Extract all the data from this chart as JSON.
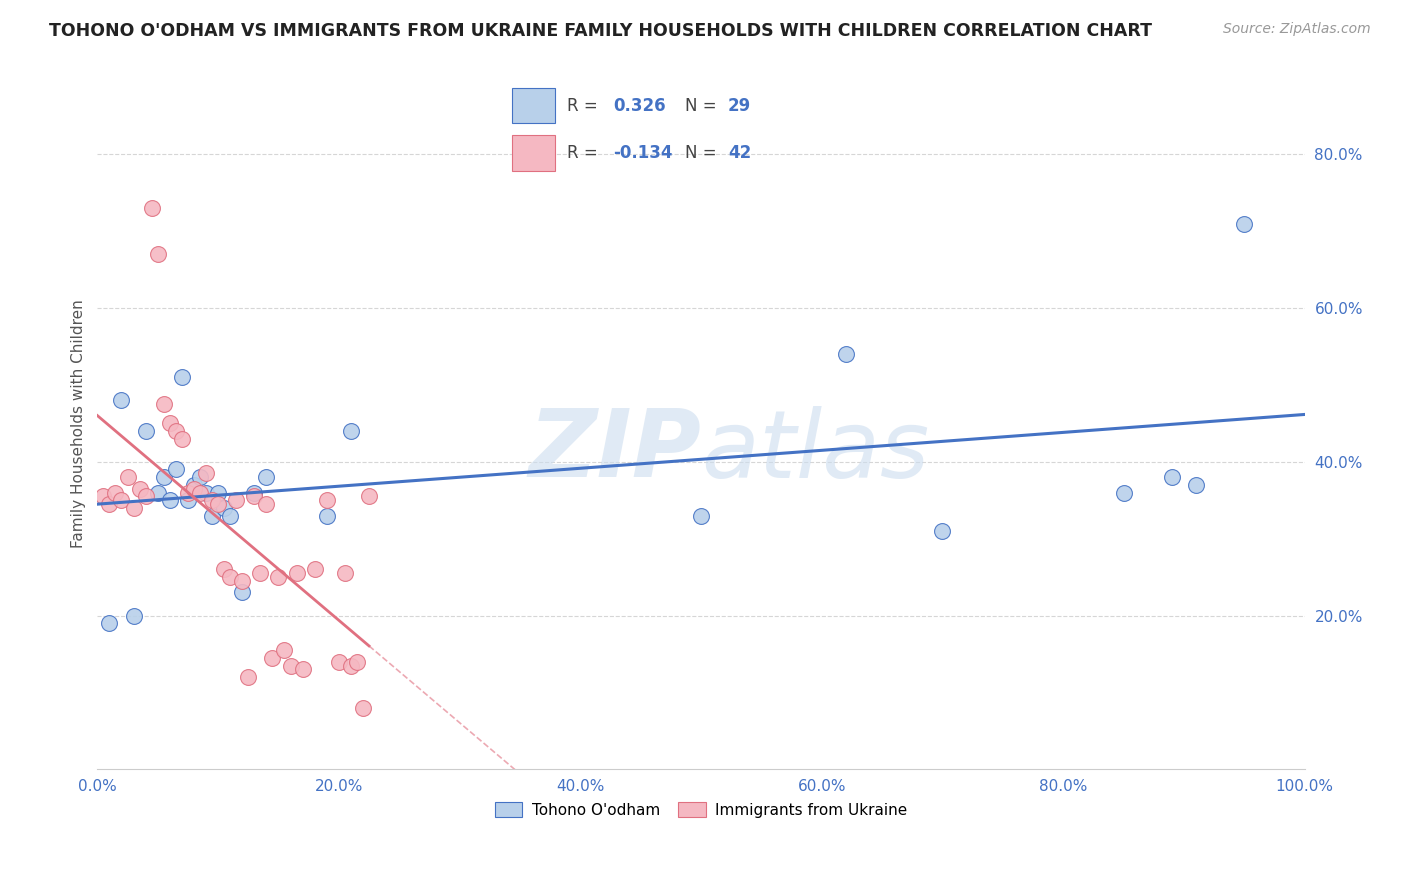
{
  "title": "TOHONO O'ODHAM VS IMMIGRANTS FROM UKRAINE FAMILY HOUSEHOLDS WITH CHILDREN CORRELATION CHART",
  "source": "Source: ZipAtlas.com",
  "ylabel": "Family Households with Children",
  "legend_bottom": [
    "Tohono O'odham",
    "Immigrants from Ukraine"
  ],
  "r1": 0.326,
  "n1": 29,
  "r2": -0.134,
  "n2": 42,
  "blue_color": "#b8d0ea",
  "pink_color": "#f5b8c2",
  "line_blue": "#4472c4",
  "line_pink": "#e07080",
  "blue_dots_x": [
    1.0,
    2.0,
    3.0,
    4.0,
    5.0,
    5.5,
    6.0,
    6.5,
    7.0,
    7.5,
    8.0,
    8.5,
    9.0,
    9.5,
    10.0,
    10.5,
    11.0,
    12.0,
    13.0,
    14.0,
    19.0,
    21.0,
    50.0,
    62.0,
    70.0,
    85.0,
    89.0,
    91.0,
    95.0
  ],
  "blue_dots_y": [
    19.0,
    48.0,
    20.0,
    44.0,
    36.0,
    38.0,
    35.0,
    39.0,
    51.0,
    35.0,
    37.0,
    38.0,
    36.0,
    33.0,
    36.0,
    34.0,
    33.0,
    23.0,
    36.0,
    38.0,
    33.0,
    44.0,
    33.0,
    54.0,
    31.0,
    36.0,
    38.0,
    37.0,
    71.0
  ],
  "pink_dots_x": [
    0.5,
    1.0,
    1.5,
    2.0,
    2.5,
    3.0,
    3.5,
    4.0,
    4.5,
    5.0,
    5.5,
    6.0,
    6.5,
    7.0,
    7.5,
    8.0,
    8.5,
    9.0,
    9.5,
    10.0,
    10.5,
    11.0,
    11.5,
    12.0,
    12.5,
    13.0,
    13.5,
    14.0,
    14.5,
    15.0,
    15.5,
    16.0,
    16.5,
    17.0,
    18.0,
    19.0,
    20.0,
    20.5,
    21.0,
    21.5,
    22.0,
    22.5
  ],
  "pink_dots_y": [
    35.5,
    34.5,
    36.0,
    35.0,
    38.0,
    34.0,
    36.5,
    35.5,
    73.0,
    67.0,
    47.5,
    45.0,
    44.0,
    43.0,
    36.0,
    36.5,
    36.0,
    38.5,
    35.0,
    34.5,
    26.0,
    25.0,
    35.0,
    24.5,
    12.0,
    35.5,
    25.5,
    34.5,
    14.5,
    25.0,
    15.5,
    13.5,
    25.5,
    13.0,
    26.0,
    35.0,
    14.0,
    25.5,
    13.5,
    14.0,
    8.0,
    35.5
  ],
  "xlim": [
    0,
    100
  ],
  "ylim": [
    0,
    90
  ],
  "xticks": [
    0,
    20,
    40,
    60,
    80,
    100
  ],
  "yticks": [
    20,
    40,
    60,
    80
  ],
  "xticklabels": [
    "0.0%",
    "20.0%",
    "40.0%",
    "60.0%",
    "80.0%",
    "100.0%"
  ],
  "yticklabels": [
    "20.0%",
    "40.0%",
    "60.0%",
    "80.0%"
  ]
}
